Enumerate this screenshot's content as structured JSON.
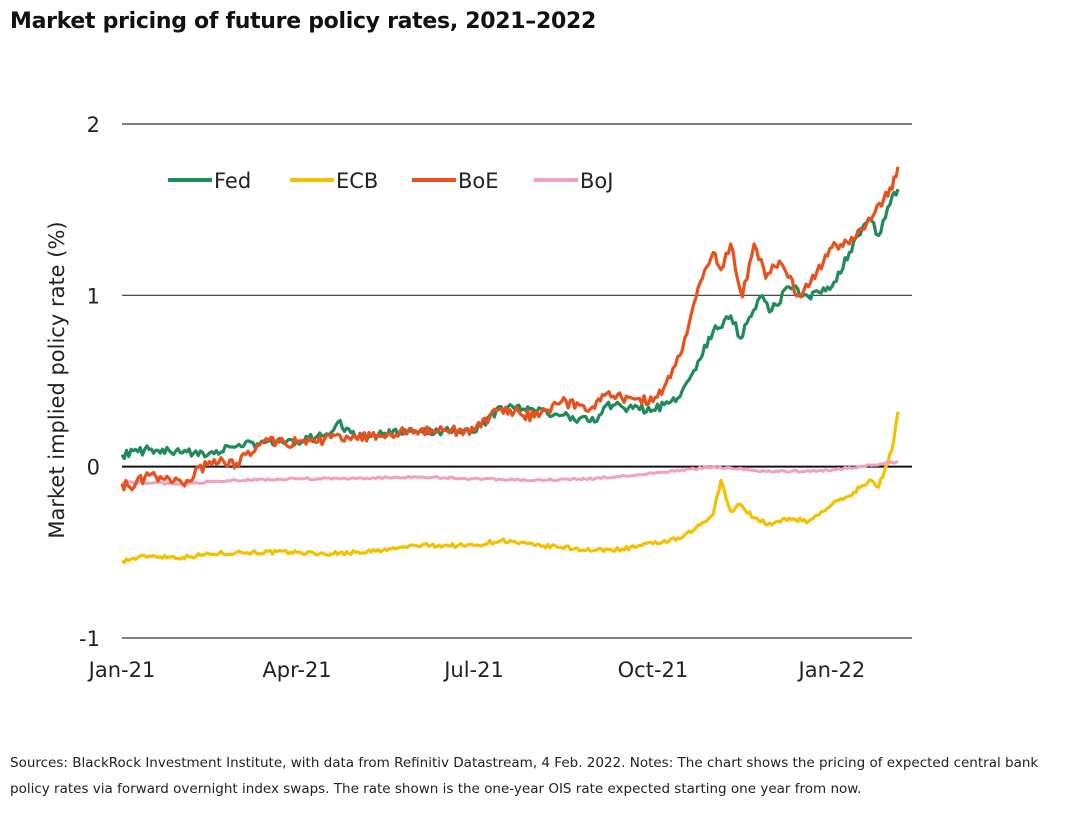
{
  "title": "Market pricing of future policy rates, 2021–2022",
  "footnote": "Sources: BlackRock Investment Institute, with data from Refinitiv Datastream, 4 Feb. 2022. Notes: The chart shows the pricing of expected central bank policy rates via forward overnight index swaps. The rate shown is the one-year OIS rate expected starting one year from now.",
  "chart_data": {
    "type": "line",
    "title": "Market pricing of future policy rates, 2021–2022",
    "xlabel": "",
    "ylabel": "Market implied policy rate (%)",
    "x_ticks": [
      "Jan-21",
      "Apr-21",
      "Jul-21",
      "Oct-21",
      "Jan-22"
    ],
    "x_tick_dates": [
      "2021-01-01",
      "2021-04-01",
      "2021-07-01",
      "2021-10-01",
      "2022-01-01"
    ],
    "x_range": [
      "2021-01-01",
      "2022-02-04"
    ],
    "y_ticks": [
      -1,
      0,
      1,
      2
    ],
    "ylim": [
      -1,
      2
    ],
    "grid": "horizontal",
    "legend": "top-left",
    "series": [
      {
        "name": "Fed",
        "color": "#1f8a5b",
        "points": [
          [
            "2021-01-01",
            0.07
          ],
          [
            "2021-01-15",
            0.1
          ],
          [
            "2021-02-01",
            0.08
          ],
          [
            "2021-02-15",
            0.08
          ],
          [
            "2021-03-01",
            0.12
          ],
          [
            "2021-03-15",
            0.14
          ],
          [
            "2021-04-01",
            0.15
          ],
          [
            "2021-04-15",
            0.18
          ],
          [
            "2021-04-22",
            0.26
          ],
          [
            "2021-05-01",
            0.17
          ],
          [
            "2021-05-15",
            0.19
          ],
          [
            "2021-06-01",
            0.2
          ],
          [
            "2021-06-15",
            0.21
          ],
          [
            "2021-07-01",
            0.2
          ],
          [
            "2021-07-15",
            0.35
          ],
          [
            "2021-08-01",
            0.33
          ],
          [
            "2021-08-15",
            0.3
          ],
          [
            "2021-09-01",
            0.26
          ],
          [
            "2021-09-07",
            0.36
          ],
          [
            "2021-09-15",
            0.35
          ],
          [
            "2021-10-01",
            0.33
          ],
          [
            "2021-10-15",
            0.41
          ],
          [
            "2021-10-22",
            0.56
          ],
          [
            "2021-11-01",
            0.79
          ],
          [
            "2021-11-10",
            0.88
          ],
          [
            "2021-11-15",
            0.75
          ],
          [
            "2021-11-25",
            0.99
          ],
          [
            "2021-12-01",
            0.91
          ],
          [
            "2021-12-10",
            1.05
          ],
          [
            "2021-12-20",
            0.99
          ],
          [
            "2022-01-01",
            1.05
          ],
          [
            "2022-01-10",
            1.25
          ],
          [
            "2022-01-20",
            1.45
          ],
          [
            "2022-01-25",
            1.35
          ],
          [
            "2022-02-01",
            1.58
          ],
          [
            "2022-02-04",
            1.62
          ]
        ]
      },
      {
        "name": "ECB",
        "color": "#f2c200",
        "points": [
          [
            "2021-01-01",
            -0.55
          ],
          [
            "2021-01-15",
            -0.52
          ],
          [
            "2021-02-01",
            -0.53
          ],
          [
            "2021-02-15",
            -0.51
          ],
          [
            "2021-03-01",
            -0.5
          ],
          [
            "2021-04-01",
            -0.5
          ],
          [
            "2021-04-15",
            -0.51
          ],
          [
            "2021-05-01",
            -0.5
          ],
          [
            "2021-05-15",
            -0.49
          ],
          [
            "2021-06-01",
            -0.46
          ],
          [
            "2021-07-01",
            -0.46
          ],
          [
            "2021-07-15",
            -0.43
          ],
          [
            "2021-08-01",
            -0.46
          ],
          [
            "2021-08-15",
            -0.47
          ],
          [
            "2021-09-01",
            -0.49
          ],
          [
            "2021-09-15",
            -0.48
          ],
          [
            "2021-10-01",
            -0.45
          ],
          [
            "2021-10-15",
            -0.42
          ],
          [
            "2021-10-22",
            -0.37
          ],
          [
            "2021-11-01",
            -0.28
          ],
          [
            "2021-11-05",
            -0.08
          ],
          [
            "2021-11-10",
            -0.26
          ],
          [
            "2021-11-15",
            -0.22
          ],
          [
            "2021-11-22",
            -0.3
          ],
          [
            "2021-12-01",
            -0.34
          ],
          [
            "2021-12-10",
            -0.3
          ],
          [
            "2021-12-20",
            -0.32
          ],
          [
            "2022-01-01",
            -0.22
          ],
          [
            "2022-01-10",
            -0.17
          ],
          [
            "2022-01-20",
            -0.08
          ],
          [
            "2022-01-25",
            -0.12
          ],
          [
            "2022-02-01",
            0.1
          ],
          [
            "2022-02-04",
            0.32
          ]
        ]
      },
      {
        "name": "BoE",
        "color": "#e8511e",
        "points": [
          [
            "2021-01-01",
            -0.1
          ],
          [
            "2021-01-05",
            -0.12
          ],
          [
            "2021-01-15",
            -0.05
          ],
          [
            "2021-02-01",
            -0.1
          ],
          [
            "2021-02-15",
            0.03
          ],
          [
            "2021-03-01",
            0.02
          ],
          [
            "2021-03-15",
            0.15
          ],
          [
            "2021-04-01",
            0.14
          ],
          [
            "2021-04-15",
            0.16
          ],
          [
            "2021-05-01",
            0.17
          ],
          [
            "2021-05-15",
            0.18
          ],
          [
            "2021-06-01",
            0.21
          ],
          [
            "2021-06-15",
            0.21
          ],
          [
            "2021-07-01",
            0.21
          ],
          [
            "2021-07-15",
            0.34
          ],
          [
            "2021-08-01",
            0.29
          ],
          [
            "2021-08-15",
            0.38
          ],
          [
            "2021-09-01",
            0.34
          ],
          [
            "2021-09-05",
            0.42
          ],
          [
            "2021-09-15",
            0.4
          ],
          [
            "2021-10-01",
            0.38
          ],
          [
            "2021-10-10",
            0.52
          ],
          [
            "2021-10-15",
            0.65
          ],
          [
            "2021-10-22",
            0.95
          ],
          [
            "2021-11-01",
            1.25
          ],
          [
            "2021-11-05",
            1.15
          ],
          [
            "2021-11-10",
            1.3
          ],
          [
            "2021-11-16",
            0.99
          ],
          [
            "2021-11-22",
            1.3
          ],
          [
            "2021-11-28",
            1.1
          ],
          [
            "2021-12-05",
            1.2
          ],
          [
            "2021-12-15",
            1.0
          ],
          [
            "2021-12-20",
            1.05
          ],
          [
            "2022-01-01",
            1.28
          ],
          [
            "2022-01-10",
            1.3
          ],
          [
            "2022-01-20",
            1.45
          ],
          [
            "2022-02-01",
            1.62
          ],
          [
            "2022-02-04",
            1.75
          ]
        ]
      },
      {
        "name": "BoJ",
        "color": "#f2a0bc",
        "points": [
          [
            "2021-01-01",
            -0.09
          ],
          [
            "2021-02-01",
            -0.1
          ],
          [
            "2021-03-01",
            -0.08
          ],
          [
            "2021-04-01",
            -0.07
          ],
          [
            "2021-05-01",
            -0.07
          ],
          [
            "2021-06-01",
            -0.06
          ],
          [
            "2021-07-01",
            -0.07
          ],
          [
            "2021-08-01",
            -0.08
          ],
          [
            "2021-09-01",
            -0.07
          ],
          [
            "2021-10-01",
            -0.04
          ],
          [
            "2021-11-01",
            0.0
          ],
          [
            "2021-12-01",
            -0.03
          ],
          [
            "2022-01-01",
            -0.02
          ],
          [
            "2022-02-04",
            0.03
          ]
        ]
      }
    ]
  }
}
